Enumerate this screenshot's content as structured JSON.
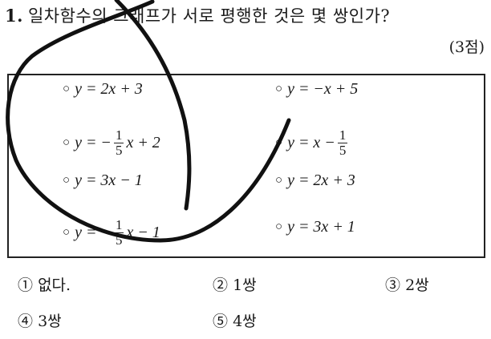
{
  "question": {
    "number": "1.",
    "text": "일차함수의 그래프가 서로 평행한 것은 몇 쌍인가?",
    "points": "(3점)"
  },
  "bullet": "○",
  "equations_left": [
    {
      "pre": "y = 2x + 3"
    },
    {
      "pre": "y = −",
      "num": "1",
      "den": "5",
      "post": "x + 2"
    },
    {
      "pre": "y = 3x − 1"
    },
    {
      "pre": "y = −",
      "num": "1",
      "den": "5",
      "post": "x − 1"
    }
  ],
  "equations_right": [
    {
      "pre": "y = −x + 5"
    },
    {
      "pre": "y = x −",
      "num": "1",
      "den": "5",
      "post": ""
    },
    {
      "pre": "y = 2x + 3"
    },
    {
      "pre": "y = 3x + 1"
    }
  ],
  "choices": [
    {
      "mark": "①",
      "label": "없다."
    },
    {
      "mark": "②",
      "label": "1쌍"
    },
    {
      "mark": "③",
      "label": "2쌍"
    },
    {
      "mark": "④",
      "label": "3쌍"
    },
    {
      "mark": "⑤",
      "label": "4쌍"
    }
  ],
  "colors": {
    "ink": "#111111",
    "text": "#1a1a1a"
  }
}
